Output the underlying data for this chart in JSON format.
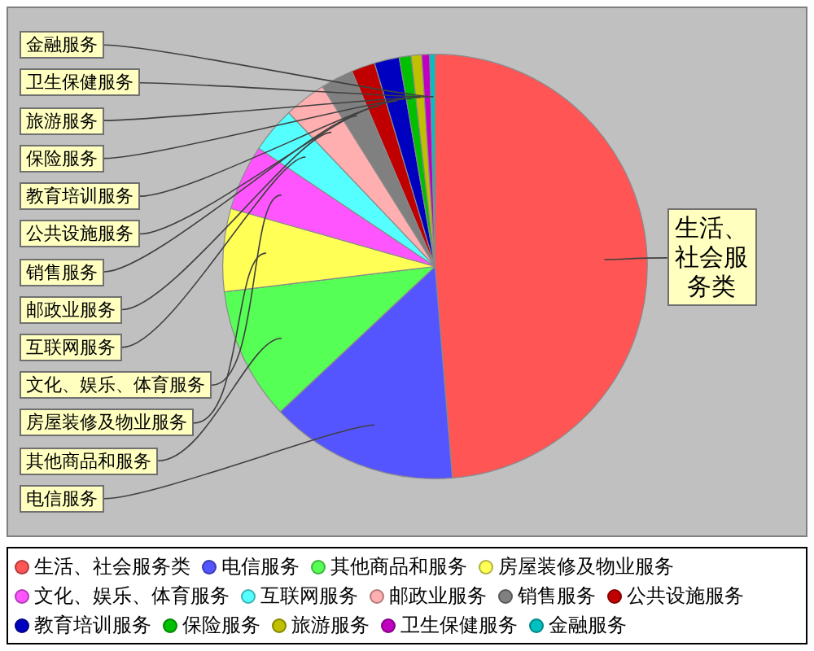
{
  "chart_data": {
    "type": "pie",
    "categories": [
      "生活、社会服务类",
      "电信服务",
      "其他商品和服务",
      "房屋装修及物业服务",
      "文化、娱乐、体育服务",
      "互联网服务",
      "邮政业服务",
      "销售服务",
      "公共设施服务",
      "教育培训服务",
      "保险服务",
      "旅游服务",
      "卫生保健服务",
      "金融服务"
    ],
    "values": [
      48.7,
      14.3,
      10.1,
      6.3,
      5.0,
      3.5,
      3.2,
      2.5,
      1.8,
      1.9,
      0.9,
      0.8,
      0.6,
      0.4
    ],
    "colors": [
      "#ff5555",
      "#5555ff",
      "#55ff55",
      "#ffff55",
      "#ff55ff",
      "#55ffff",
      "#ffafaf",
      "#808080",
      "#c00000",
      "#0000c0",
      "#00c000",
      "#c0c000",
      "#c000c0",
      "#00c0c0"
    ],
    "legend": "bottom"
  }
}
